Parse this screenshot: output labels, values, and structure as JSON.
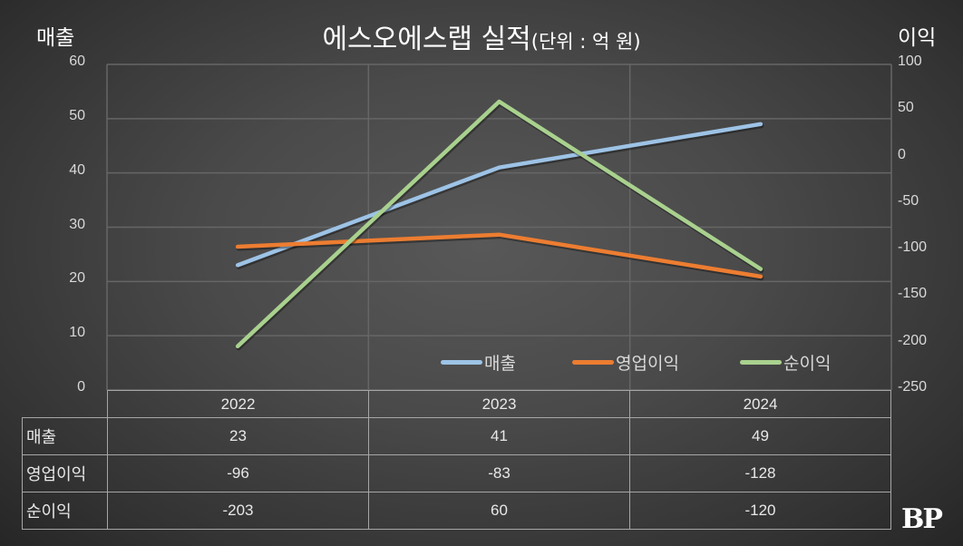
{
  "chart_data": {
    "type": "line",
    "title": "에스오에스랩 실적",
    "title_unit": "(단위 : 억 원)",
    "categories": [
      "2022",
      "2023",
      "2024"
    ],
    "left_axis": {
      "title": "매출",
      "range": [
        0,
        60
      ],
      "ticks": [
        "0",
        "10",
        "20",
        "30",
        "40",
        "50",
        "60"
      ]
    },
    "right_axis": {
      "title": "이익",
      "range": [
        -250,
        100
      ],
      "ticks": [
        "-250",
        "-200",
        "-150",
        "-100",
        "-50",
        "0",
        "50",
        "100"
      ]
    },
    "grid": true,
    "legend_position": "bottom-right-inside",
    "series": [
      {
        "name": "매출",
        "axis": "left",
        "color": "#9dc3e6",
        "values": [
          23,
          41,
          49
        ]
      },
      {
        "name": "영업이익",
        "axis": "right",
        "color": "#ed7d31",
        "values": [
          -96,
          -83,
          -128
        ]
      },
      {
        "name": "순이익",
        "axis": "right",
        "color": "#a9d18e",
        "values": [
          -203,
          60,
          -120
        ]
      }
    ]
  },
  "table": {
    "header": [
      "2022",
      "2023",
      "2024"
    ],
    "rows": [
      {
        "label": "매출",
        "cells": [
          "23",
          "41",
          "49"
        ]
      },
      {
        "label": "영업이익",
        "cells": [
          "-96",
          "-83",
          "-128"
        ]
      },
      {
        "label": "순이익",
        "cells": [
          "-203",
          "60",
          "-120"
        ]
      }
    ]
  },
  "logo": "BP"
}
